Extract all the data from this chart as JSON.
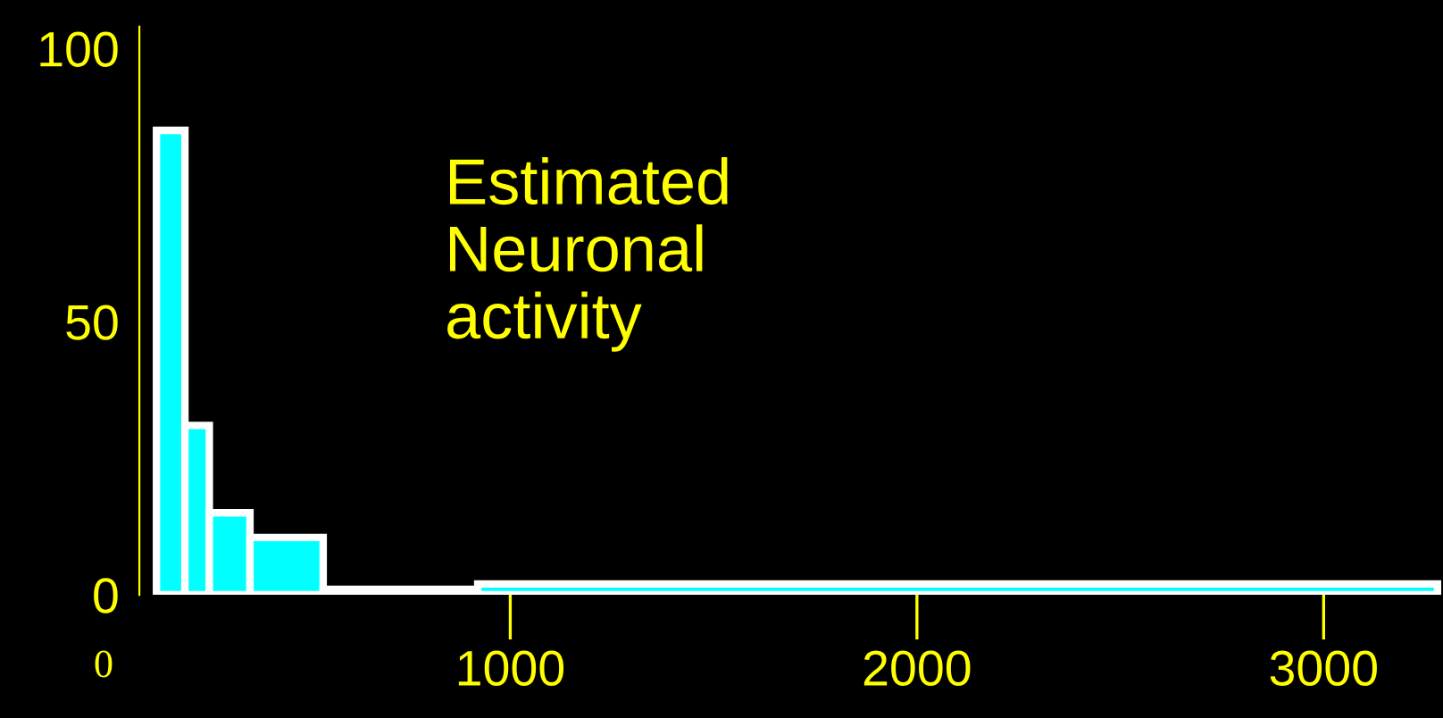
{
  "chart_data": {
    "type": "histogram",
    "bins": [
      130,
      200,
      260,
      360,
      540,
      920,
      3280
    ],
    "values": [
      85,
      31,
      15,
      10.5,
      1,
      2
    ],
    "color": "#00ffff",
    "xlim": [
      0,
      3290
    ],
    "ylim": [
      0,
      104
    ],
    "xticks": [
      0,
      1000,
      2000,
      3000
    ],
    "yticks": [
      0,
      50,
      100
    ],
    "grid": false,
    "legend": false,
    "annotations": [
      "Estimated\nNeuronal\nactivity"
    ]
  }
}
